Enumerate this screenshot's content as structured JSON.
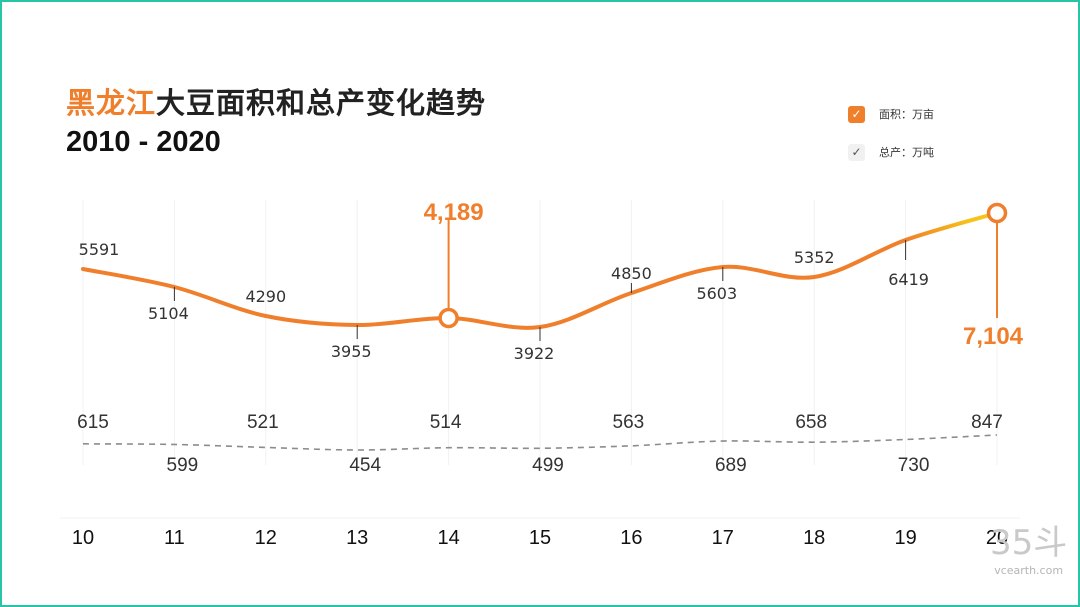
{
  "title": {
    "accent": "黑龙江",
    "rest": "大豆面积和总产变化趋势",
    "line2": "2010 - 2020"
  },
  "legend": {
    "area_label": "面积：万亩",
    "production_label": "总产：万吨"
  },
  "colors": {
    "area_line": "#f07f2c",
    "area_line_end": "#f7c21a",
    "production_line": "#8c8c8c",
    "frame": "#27c4a8"
  },
  "chart_data": {
    "type": "line",
    "categories": [
      "10",
      "11",
      "12",
      "13",
      "14",
      "15",
      "16",
      "17",
      "18",
      "19",
      "20"
    ],
    "area_line_levels": [
      5591,
      5104,
      4290,
      3955,
      4189,
      3922,
      4850,
      5603,
      5352,
      6419,
      7104
    ],
    "series": [
      {
        "values": [
          5591,
          5104,
          4290,
          3955,
          4189,
          3922,
          4850,
          5603,
          5352,
          6419,
          7104
        ],
        "labels": [
          "5591",
          "5104",
          "4290",
          "3955",
          "4,189",
          "3922",
          "4850",
          "5603",
          "5352",
          "6419",
          "7,104"
        ]
      },
      {
        "values": [
          615,
          599,
          521,
          454,
          514,
          499,
          563,
          689,
          658,
          730,
          847
        ],
        "labels": [
          "615",
          "599",
          "521",
          "454",
          "514",
          "499",
          "563",
          "689",
          "658",
          "730",
          "847"
        ]
      }
    ],
    "highlighted_categories": [
      "14",
      "20"
    ],
    "grid": "vertical"
  },
  "watermark": {
    "logo": "35斗",
    "site": "vcearth.com"
  }
}
